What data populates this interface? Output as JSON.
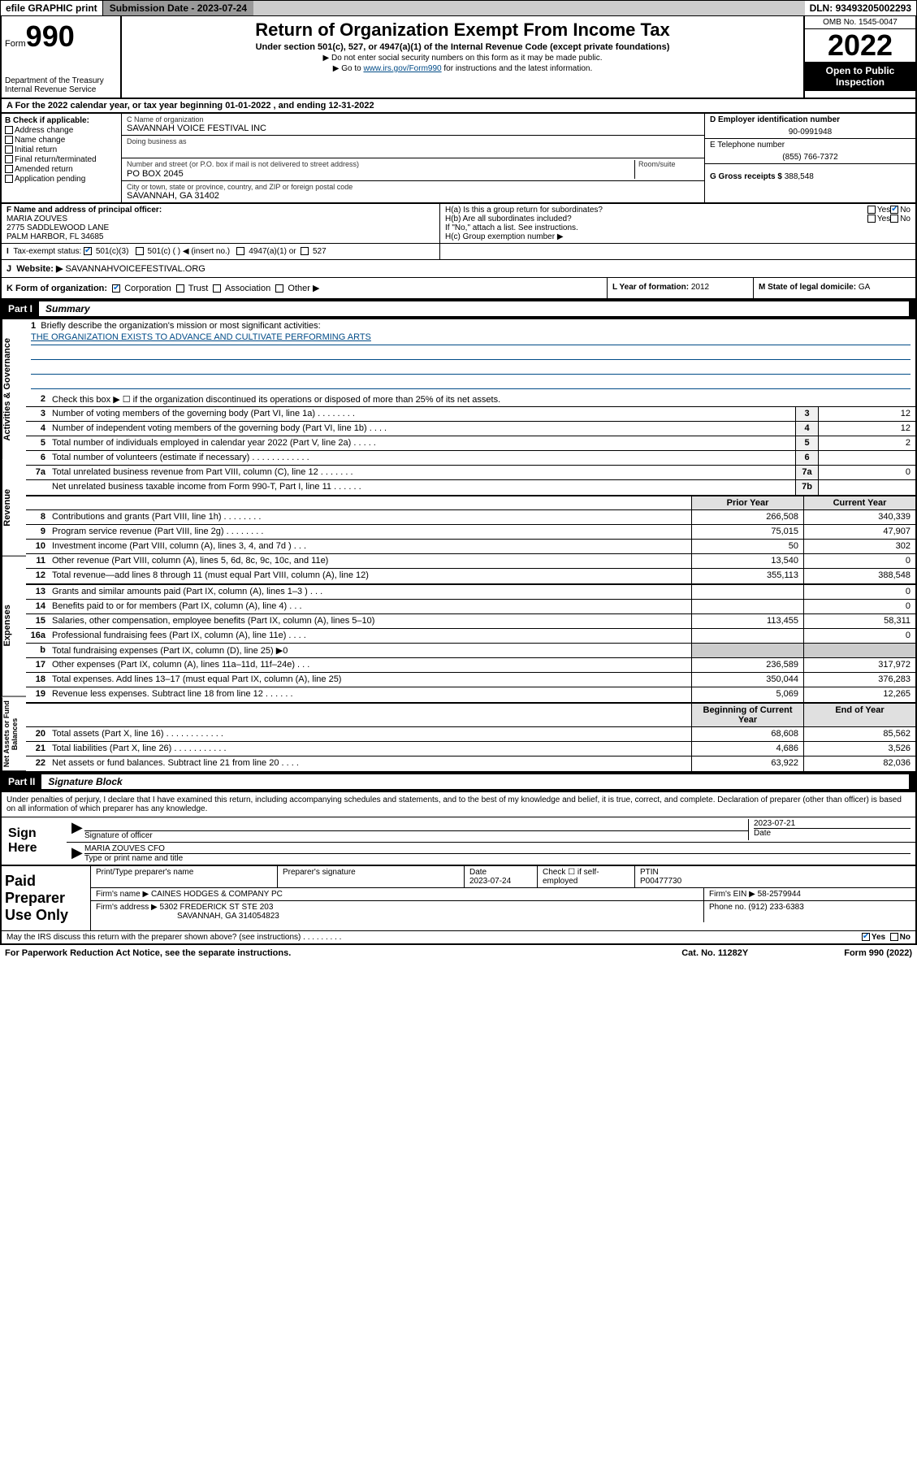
{
  "topbar": {
    "efile": "efile GRAPHIC print",
    "subdate_label": "Submission Date - ",
    "subdate": "2023-07-24",
    "dln_label": "DLN: ",
    "dln": "93493205002293"
  },
  "header": {
    "form_word": "Form",
    "form_num": "990",
    "dept": "Department of the Treasury",
    "irs": "Internal Revenue Service",
    "title": "Return of Organization Exempt From Income Tax",
    "subtitle": "Under section 501(c), 527, or 4947(a)(1) of the Internal Revenue Code (except private foundations)",
    "note1": "▶ Do not enter social security numbers on this form as it may be made public.",
    "note2_pre": "▶ Go to ",
    "note2_link": "www.irs.gov/Form990",
    "note2_post": " for instructions and the latest information.",
    "omb": "OMB No. 1545-0047",
    "year": "2022",
    "inspect": "Open to Public Inspection"
  },
  "period": "A For the 2022 calendar year, or tax year beginning 01-01-2022   , and ending 12-31-2022",
  "checkB": {
    "hdr": "B Check if applicable:",
    "items": [
      "Address change",
      "Name change",
      "Initial return",
      "Final return/terminated",
      "Amended return",
      "Application pending"
    ]
  },
  "orgC": {
    "name_lbl": "C Name of organization",
    "name": "SAVANNAH VOICE FESTIVAL INC",
    "dba_lbl": "Doing business as",
    "dba": "",
    "addr_lbl": "Number and street (or P.O. box if mail is not delivered to street address)",
    "room_lbl": "Room/suite",
    "addr": "PO BOX 2045",
    "city_lbl": "City or town, state or province, country, and ZIP or foreign postal code",
    "city": "SAVANNAH, GA  31402"
  },
  "colD": {
    "ein_lbl": "D Employer identification number",
    "ein": "90-0991948",
    "tel_lbl": "E Telephone number",
    "tel": "(855) 766-7372",
    "gross_lbl": "G Gross receipts $ ",
    "gross": "388,548"
  },
  "rowF": {
    "lbl": "F Name and address of principal officer:",
    "name": "MARIA ZOUVES",
    "addr1": "2775 SADDLEWOOD LANE",
    "addr2": "PALM HARBOR, FL  34685"
  },
  "rowH": {
    "ha": "H(a)  Is this a group return for subordinates?",
    "ha_yes": "Yes",
    "ha_no": "No",
    "hb": "H(b)  Are all subordinates included?",
    "hb_note": "If \"No,\" attach a list. See instructions.",
    "hc": "H(c)  Group exemption number ▶"
  },
  "rowI": {
    "lbl": "Tax-exempt status:",
    "o1": "501(c)(3)",
    "o2": "501(c) (  ) ◀ (insert no.)",
    "o3": "4947(a)(1) or",
    "o4": "527"
  },
  "rowJ": {
    "lbl": "Website: ▶ ",
    "val": "SAVANNAHVOICEFESTIVAL.ORG"
  },
  "rowK": {
    "lbl": "K Form of organization:",
    "o1": "Corporation",
    "o2": "Trust",
    "o3": "Association",
    "o4": "Other ▶"
  },
  "rowL": {
    "lbl": "L Year of formation: ",
    "val": "2012"
  },
  "rowM": {
    "lbl": "M State of legal domicile: ",
    "val": "GA"
  },
  "part1": {
    "num": "Part I",
    "title": "Summary",
    "sidelabels": [
      "Activities & Governance",
      "Revenue",
      "Expenses",
      "Net Assets or Fund Balances"
    ],
    "l1": "Briefly describe the organization's mission or most significant activities:",
    "mission": "THE ORGANIZATION EXISTS TO ADVANCE AND CULTIVATE PERFORMING ARTS",
    "l2": "Check this box ▶ ☐  if the organization discontinued its operations or disposed of more than 25% of its net assets.",
    "hdr_prior": "Prior Year",
    "hdr_curr": "Current Year",
    "hdr_beg": "Beginning of Current Year",
    "hdr_end": "End of Year",
    "rows_gov": [
      {
        "n": "3",
        "d": "Number of voting members of the governing body (Part VI, line 1a)  .   .   .   .   .   .   .   .",
        "b": "3",
        "v": "12"
      },
      {
        "n": "4",
        "d": "Number of independent voting members of the governing body (Part VI, line 1b)  .   .   .   .",
        "b": "4",
        "v": "12"
      },
      {
        "n": "5",
        "d": "Total number of individuals employed in calendar year 2022 (Part V, line 2a)  .   .   .   .   .",
        "b": "5",
        "v": "2"
      },
      {
        "n": "6",
        "d": "Total number of volunteers (estimate if necessary)  .   .   .   .   .   .   .   .   .   .   .   .",
        "b": "6",
        "v": ""
      },
      {
        "n": "7a",
        "d": "Total unrelated business revenue from Part VIII, column (C), line 12  .   .   .   .   .   .   .",
        "b": "7a",
        "v": "0"
      },
      {
        "n": "",
        "d": "Net unrelated business taxable income from Form 990-T, Part I, line 11  .   .   .   .   .   .",
        "b": "7b",
        "v": ""
      }
    ],
    "rows_rev": [
      {
        "n": "8",
        "d": "Contributions and grants (Part VIII, line 1h)  .   .   .   .   .   .   .   .",
        "p": "266,508",
        "c": "340,339"
      },
      {
        "n": "9",
        "d": "Program service revenue (Part VIII, line 2g)  .   .   .   .   .   .   .   .",
        "p": "75,015",
        "c": "47,907"
      },
      {
        "n": "10",
        "d": "Investment income (Part VIII, column (A), lines 3, 4, and 7d )  .   .   .",
        "p": "50",
        "c": "302"
      },
      {
        "n": "11",
        "d": "Other revenue (Part VIII, column (A), lines 5, 6d, 8c, 9c, 10c, and 11e)",
        "p": "13,540",
        "c": "0"
      },
      {
        "n": "12",
        "d": "Total revenue—add lines 8 through 11 (must equal Part VIII, column (A), line 12)",
        "p": "355,113",
        "c": "388,548"
      }
    ],
    "rows_exp": [
      {
        "n": "13",
        "d": "Grants and similar amounts paid (Part IX, column (A), lines 1–3 )  .   .   .",
        "p": "",
        "c": "0"
      },
      {
        "n": "14",
        "d": "Benefits paid to or for members (Part IX, column (A), line 4)  .   .   .",
        "p": "",
        "c": "0"
      },
      {
        "n": "15",
        "d": "Salaries, other compensation, employee benefits (Part IX, column (A), lines 5–10)",
        "p": "113,455",
        "c": "58,311"
      },
      {
        "n": "16a",
        "d": "Professional fundraising fees (Part IX, column (A), line 11e)  .   .   .   .",
        "p": "",
        "c": "0"
      },
      {
        "n": "b",
        "d": "Total fundraising expenses (Part IX, column (D), line 25) ▶0",
        "p": null,
        "c": null
      },
      {
        "n": "17",
        "d": "Other expenses (Part IX, column (A), lines 11a–11d, 11f–24e)  .   .   .",
        "p": "236,589",
        "c": "317,972"
      },
      {
        "n": "18",
        "d": "Total expenses. Add lines 13–17 (must equal Part IX, column (A), line 25)",
        "p": "350,044",
        "c": "376,283"
      },
      {
        "n": "19",
        "d": "Revenue less expenses. Subtract line 18 from line 12  .   .   .   .   .   .",
        "p": "5,069",
        "c": "12,265"
      }
    ],
    "rows_net": [
      {
        "n": "20",
        "d": "Total assets (Part X, line 16)  .   .   .   .   .   .   .   .   .   .   .   .",
        "p": "68,608",
        "c": "85,562"
      },
      {
        "n": "21",
        "d": "Total liabilities (Part X, line 26)  .   .   .   .   .   .   .   .   .   .   .",
        "p": "4,686",
        "c": "3,526"
      },
      {
        "n": "22",
        "d": "Net assets or fund balances. Subtract line 21 from line 20  .   .   .   .",
        "p": "63,922",
        "c": "82,036"
      }
    ]
  },
  "part2": {
    "num": "Part II",
    "title": "Signature Block",
    "decl": "Under penalties of perjury, I declare that I have examined this return, including accompanying schedules and statements, and to the best of my knowledge and belief, it is true, correct, and complete. Declaration of preparer (other than officer) is based on all information of which preparer has any knowledge.",
    "sign_here": "Sign Here",
    "sig_lbl": "Signature of officer",
    "date_lbl": "Date",
    "sig_date": "2023-07-21",
    "officer": "MARIA ZOUVES CFO",
    "officer_lbl": "Type or print name and title",
    "paid": "Paid Preparer Use Only",
    "prep_name_lbl": "Print/Type preparer's name",
    "prep_sig_lbl": "Preparer's signature",
    "prep_date_lbl": "Date",
    "prep_date": "2023-07-24",
    "check_self": "Check ☐ if self-employed",
    "ptin_lbl": "PTIN",
    "ptin": "P00477730",
    "firm_name_lbl": "Firm's name   ▶ ",
    "firm_name": "CAINES HODGES & COMPANY PC",
    "firm_ein_lbl": "Firm's EIN ▶ ",
    "firm_ein": "58-2579944",
    "firm_addr_lbl": "Firm's address ▶ ",
    "firm_addr1": "5302 FREDERICK ST STE 203",
    "firm_addr2": "SAVANNAH, GA 314054823",
    "phone_lbl": "Phone no. ",
    "phone": "(912) 233-6383",
    "discuss": "May the IRS discuss this return with the preparer shown above? (see instructions)  .   .   .   .   .   .   .   .   .",
    "discuss_yes": "Yes",
    "discuss_no": "No"
  },
  "footer": {
    "pra": "For Paperwork Reduction Act Notice, see the separate instructions.",
    "cat": "Cat. No. 11282Y",
    "form": "Form 990 (2022)"
  },
  "colors": {
    "link": "#004b87",
    "check": "#0066cc",
    "bg": "#ffffff"
  }
}
